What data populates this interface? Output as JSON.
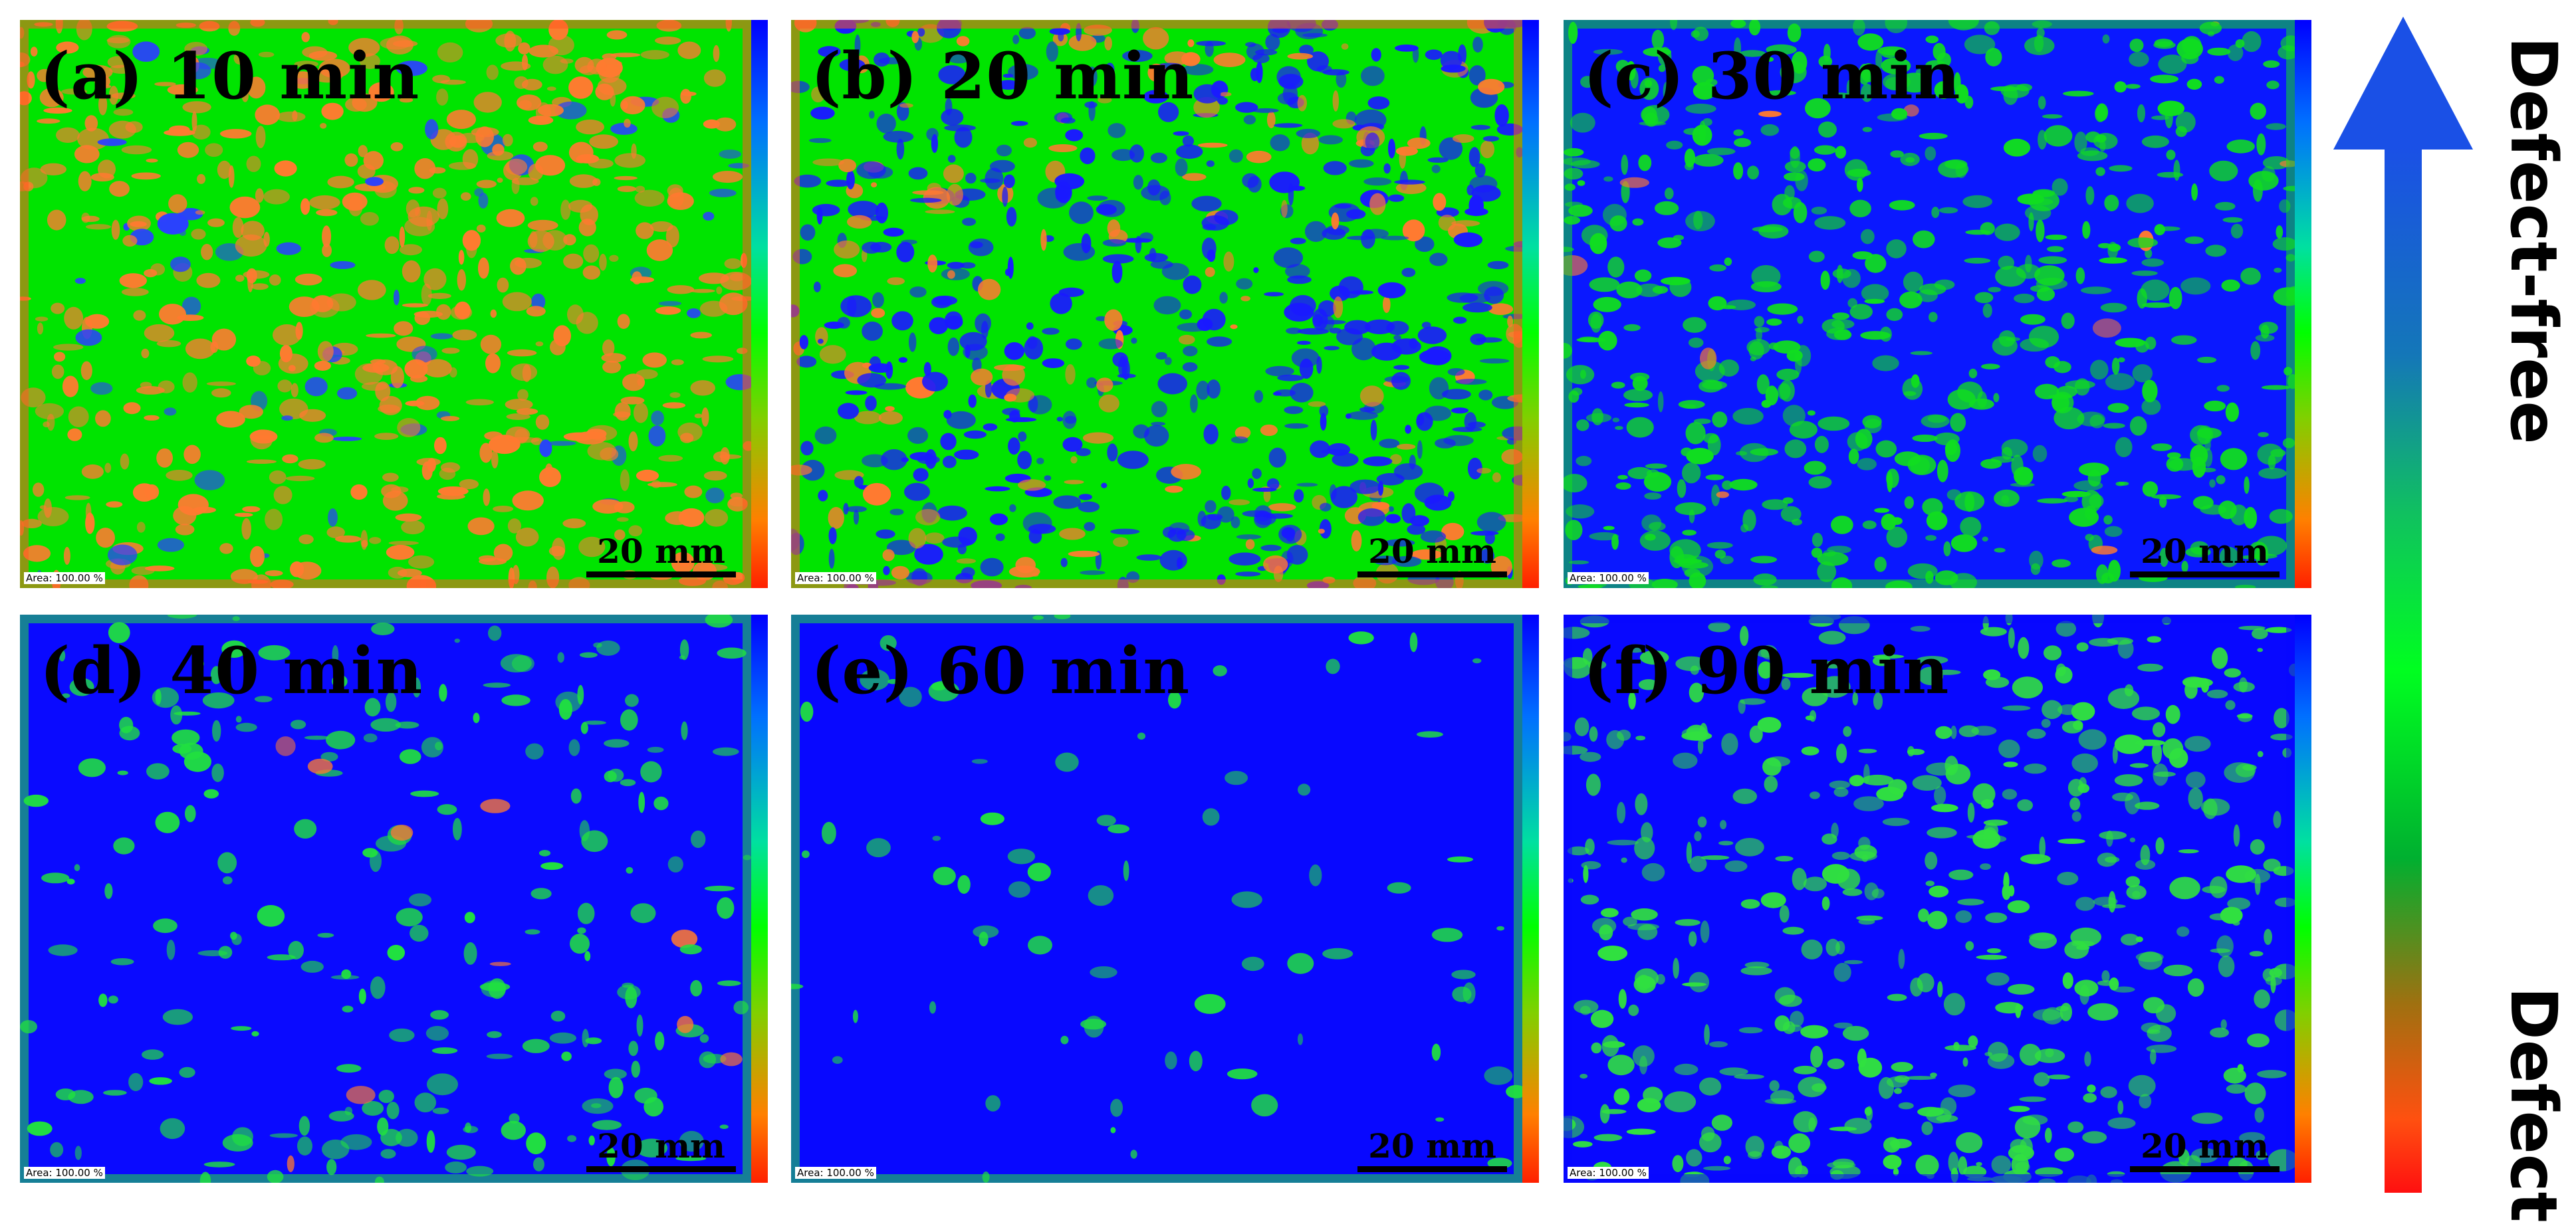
{
  "panels": [
    {
      "id": "a",
      "label": "(a) 10 min",
      "scale_bar": "20 mm",
      "area_tag": "Area: 100.00 %",
      "colors": [
        "#00e400",
        "#ff7a30",
        "#2a40ff"
      ],
      "mix": [
        0.58,
        0.38,
        0.04
      ],
      "edge": "#ff5a20"
    },
    {
      "id": "b",
      "label": "(b) 20 min",
      "scale_bar": "20 mm",
      "area_tag": "Area: 100.00 %",
      "colors": [
        "#00e400",
        "#1a1aff",
        "#ff7a30"
      ],
      "mix": [
        0.5,
        0.38,
        0.12
      ],
      "edge": "#ff5a20"
    },
    {
      "id": "c",
      "label": "(c) 30 min",
      "scale_bar": "20 mm",
      "area_tag": "Area: 100.00 %",
      "colors": [
        "#0a18ff",
        "#10dd20",
        "#ff7a30"
      ],
      "mix": [
        0.58,
        0.41,
        0.01
      ],
      "edge": "#10dd20"
    },
    {
      "id": "d",
      "label": "(d) 40 min",
      "scale_bar": "20 mm",
      "area_tag": "Area: 100.00 %",
      "colors": [
        "#0a0aff",
        "#20e040",
        "#ff7a30"
      ],
      "mix": [
        0.84,
        0.155,
        0.005
      ],
      "edge": "#20e040"
    },
    {
      "id": "e",
      "label": "(e) 60 min",
      "scale_bar": "20 mm",
      "area_tag": "Area: 100.00 %",
      "colors": [
        "#0808ff",
        "#20e040",
        "#ff7a30"
      ],
      "mix": [
        0.95,
        0.05,
        0.0
      ],
      "edge": "#20e040"
    },
    {
      "id": "f",
      "label": "(f) 90 min",
      "scale_bar": "20 mm",
      "area_tag": "Area: 100.00 %",
      "colors": [
        "#0808ff",
        "#30e040",
        "#ff7a30"
      ],
      "mix": [
        0.66,
        0.34,
        0.0
      ],
      "edge": "#0808ff"
    }
  ],
  "arrow": {
    "top_label": "Defect-free",
    "bottom_label": "Defect",
    "top_color": "#1a50e6",
    "bottom_color": "#ff1010"
  }
}
